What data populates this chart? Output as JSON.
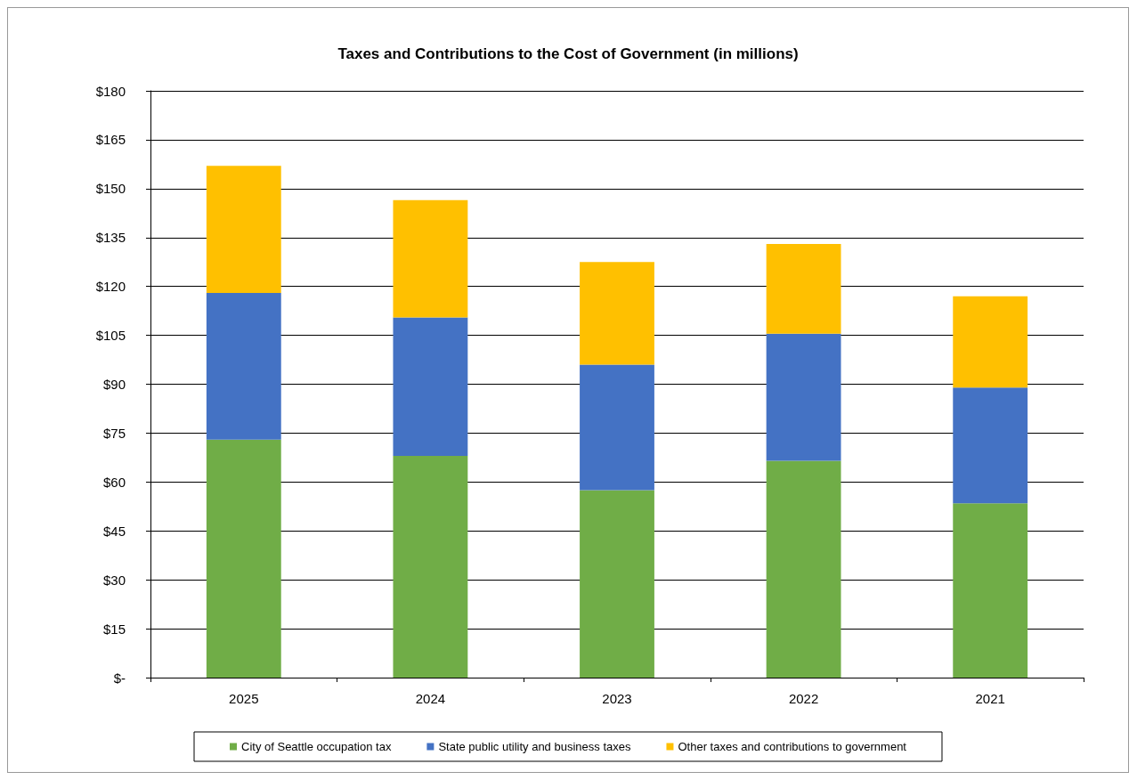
{
  "chart_data": {
    "type": "bar",
    "title": "Taxes and Contributions to the Cost of Government (in millions)",
    "categories": [
      "2025",
      "2024",
      "2023",
      "2022",
      "2021"
    ],
    "stacked": true,
    "series": [
      {
        "name": "City of Seattle occupation tax",
        "color": "#70ad47",
        "values": [
          73,
          68,
          57.5,
          66.5,
          53.5
        ]
      },
      {
        "name": "State public utility and business taxes",
        "color": "#4472c4",
        "values": [
          45,
          42.5,
          38.5,
          39,
          35.5
        ]
      },
      {
        "name": "Other taxes and contributions to government",
        "color": "#ffc000",
        "values": [
          39,
          36,
          31.5,
          27.5,
          28
        ]
      }
    ],
    "ylim": [
      0,
      180
    ],
    "yticks": [
      {
        "value": 0,
        "label": "$-"
      },
      {
        "value": 15,
        "label": "$15"
      },
      {
        "value": 30,
        "label": "$30"
      },
      {
        "value": 45,
        "label": "$45"
      },
      {
        "value": 60,
        "label": "$60"
      },
      {
        "value": 75,
        "label": "$75"
      },
      {
        "value": 90,
        "label": "$90"
      },
      {
        "value": 105,
        "label": "$105"
      },
      {
        "value": 120,
        "label": "$120"
      },
      {
        "value": 135,
        "label": "$135"
      },
      {
        "value": 150,
        "label": "$150"
      },
      {
        "value": 165,
        "label": "$165"
      },
      {
        "value": 180,
        "label": "$180"
      }
    ],
    "grid": "y",
    "legend": "bottom"
  }
}
